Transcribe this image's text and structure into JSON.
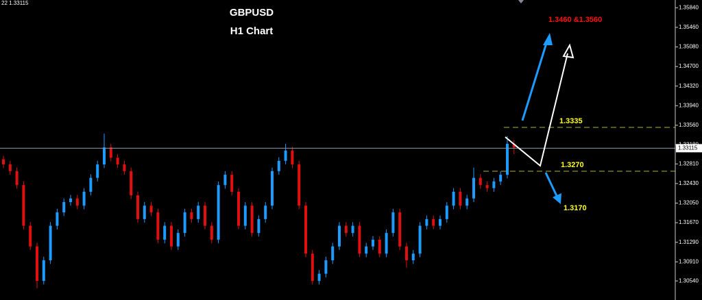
{
  "chart_data": {
    "type": "candlestick",
    "title": "GBPUSD",
    "subtitle": "H1 Chart",
    "top_left_label": "22 1.33115",
    "annotations": [
      "1.3460 &1.3560",
      "1.3335",
      "1.3270",
      "1.3170"
    ],
    "up_color": "#1e9bff",
    "down_color": "#e01010",
    "categories": [
      null,
      null,
      null,
      null,
      null,
      null,
      null,
      null,
      null,
      null,
      null,
      null,
      null,
      null,
      null,
      null,
      null,
      null,
      null,
      null,
      null,
      null,
      null,
      null,
      null,
      null,
      null,
      null,
      null,
      null,
      null,
      null,
      null,
      null,
      null,
      null,
      null,
      null,
      null,
      null,
      null,
      null,
      null,
      null,
      null,
      null,
      null,
      null,
      null,
      null,
      null,
      null,
      null,
      null,
      null,
      null,
      null,
      null,
      null,
      null,
      null,
      null,
      null,
      null,
      null,
      null,
      null,
      null,
      null,
      null,
      null,
      null,
      null,
      null,
      null,
      null,
      null
    ],
    "open": [
      1.329,
      1.328,
      1.3267,
      1.324,
      1.3161,
      1.3121,
      1.3054,
      1.3094,
      1.3161,
      1.3187,
      1.3207,
      1.3214,
      1.32,
      1.3227,
      1.3254,
      1.328,
      1.3313,
      1.3293,
      1.328,
      1.3267,
      1.322,
      1.3174,
      1.32,
      1.3187,
      1.3134,
      1.3161,
      1.3121,
      1.3147,
      1.3187,
      1.3174,
      1.32,
      1.3161,
      1.3134,
      1.324,
      1.326,
      1.3227,
      1.3161,
      1.32,
      1.3147,
      1.3174,
      1.32,
      1.3267,
      1.3287,
      1.3307,
      1.328,
      1.32,
      1.3107,
      1.3054,
      1.3068,
      1.3094,
      1.3121,
      1.3161,
      1.3147,
      1.3161,
      1.3107,
      1.3121,
      1.3134,
      1.3107,
      1.3147,
      1.3187,
      1.3121,
      1.3094,
      1.3107,
      1.3161,
      1.3174,
      1.3161,
      1.3174,
      1.32,
      1.3227,
      1.32,
      1.3214,
      1.3254,
      1.324,
      1.3234,
      1.3247,
      1.326,
      1.332
    ],
    "high": [
      1.3297,
      1.3287,
      1.3274,
      1.3247,
      1.3168,
      1.3128,
      1.3101,
      1.3168,
      1.3194,
      1.3214,
      1.3221,
      1.3221,
      1.3234,
      1.3261,
      1.3287,
      1.334,
      1.332,
      1.33,
      1.3287,
      1.3274,
      1.3227,
      1.3207,
      1.3207,
      1.3194,
      1.3168,
      1.3168,
      1.3154,
      1.3194,
      1.3194,
      1.3207,
      1.3207,
      1.3168,
      1.3247,
      1.3267,
      1.3267,
      1.3234,
      1.3207,
      1.3207,
      1.3181,
      1.3207,
      1.3274,
      1.3294,
      1.332,
      1.3314,
      1.3287,
      1.3207,
      1.3114,
      1.3075,
      1.3101,
      1.3128,
      1.3168,
      1.3168,
      1.3168,
      1.3168,
      1.3128,
      1.3141,
      1.3141,
      1.3154,
      1.3194,
      1.3194,
      1.3128,
      1.3114,
      1.3168,
      1.3181,
      1.3181,
      1.3181,
      1.3207,
      1.3234,
      1.3234,
      1.3221,
      1.3274,
      1.3261,
      1.3247,
      1.3254,
      1.3267,
      1.3335,
      1.3327
    ],
    "low": [
      1.3273,
      1.326,
      1.3233,
      1.3154,
      1.3114,
      1.304,
      1.3047,
      1.3087,
      1.3154,
      1.318,
      1.32,
      1.3193,
      1.3193,
      1.322,
      1.3247,
      1.3273,
      1.3286,
      1.3273,
      1.326,
      1.3213,
      1.3167,
      1.3167,
      1.318,
      1.3127,
      1.3127,
      1.3114,
      1.3114,
      1.314,
      1.3167,
      1.3167,
      1.3154,
      1.3127,
      1.3127,
      1.3233,
      1.322,
      1.3154,
      1.3154,
      1.314,
      1.314,
      1.3167,
      1.3193,
      1.326,
      1.328,
      1.3273,
      1.3193,
      1.31,
      1.3047,
      1.3047,
      1.3061,
      1.3087,
      1.3114,
      1.314,
      1.314,
      1.31,
      1.31,
      1.3114,
      1.31,
      1.31,
      1.314,
      1.3114,
      1.308,
      1.3087,
      1.31,
      1.3154,
      1.3154,
      1.3154,
      1.3167,
      1.3193,
      1.3193,
      1.3193,
      1.3207,
      1.3233,
      1.3227,
      1.3227,
      1.324,
      1.3253,
      1.33
    ],
    "close": [
      1.328,
      1.3267,
      1.324,
      1.3161,
      1.3121,
      1.3054,
      1.3094,
      1.3161,
      1.3187,
      1.3207,
      1.3214,
      1.32,
      1.3227,
      1.3254,
      1.328,
      1.3313,
      1.3293,
      1.328,
      1.3267,
      1.322,
      1.3174,
      1.32,
      1.3187,
      1.3134,
      1.3161,
      1.3121,
      1.3147,
      1.3187,
      1.3174,
      1.32,
      1.3161,
      1.3134,
      1.324,
      1.326,
      1.3227,
      1.3161,
      1.32,
      1.3147,
      1.3174,
      1.32,
      1.3267,
      1.3287,
      1.3307,
      1.328,
      1.32,
      1.3107,
      1.3054,
      1.3068,
      1.3094,
      1.3121,
      1.3161,
      1.3147,
      1.3161,
      1.3107,
      1.3121,
      1.3134,
      1.3107,
      1.3147,
      1.3187,
      1.3121,
      1.3094,
      1.3107,
      1.3161,
      1.3174,
      1.3161,
      1.3174,
      1.32,
      1.3227,
      1.32,
      1.3214,
      1.3254,
      1.324,
      1.3234,
      1.3247,
      1.326,
      1.332,
      1.3313
    ],
    "current_price": {
      "value": 1.33115,
      "label": "1.33115"
    },
    "ylim": [
      1.3017,
      1.3599
    ],
    "yticks": [
      {
        "value": 1.3584,
        "label": "1.35840"
      },
      {
        "value": 1.3546,
        "label": "1.35460"
      },
      {
        "value": 1.3508,
        "label": "1.35080"
      },
      {
        "value": 1.347,
        "label": "1.34700"
      },
      {
        "value": 1.3432,
        "label": "1.34320"
      },
      {
        "value": 1.3394,
        "label": "1.33940"
      },
      {
        "value": 1.3356,
        "label": "1.33560"
      },
      {
        "value": 1.3318,
        "label": "1.33180"
      },
      {
        "value": 1.3281,
        "label": "1.32810"
      },
      {
        "value": 1.3243,
        "label": "1.32430"
      },
      {
        "value": 1.3205,
        "label": "1.32050"
      },
      {
        "value": 1.3167,
        "label": "1.31670"
      },
      {
        "value": 1.3129,
        "label": "1.31290"
      },
      {
        "value": 1.3091,
        "label": "1.30910"
      },
      {
        "value": 1.3054,
        "label": "1.30540"
      }
    ]
  }
}
